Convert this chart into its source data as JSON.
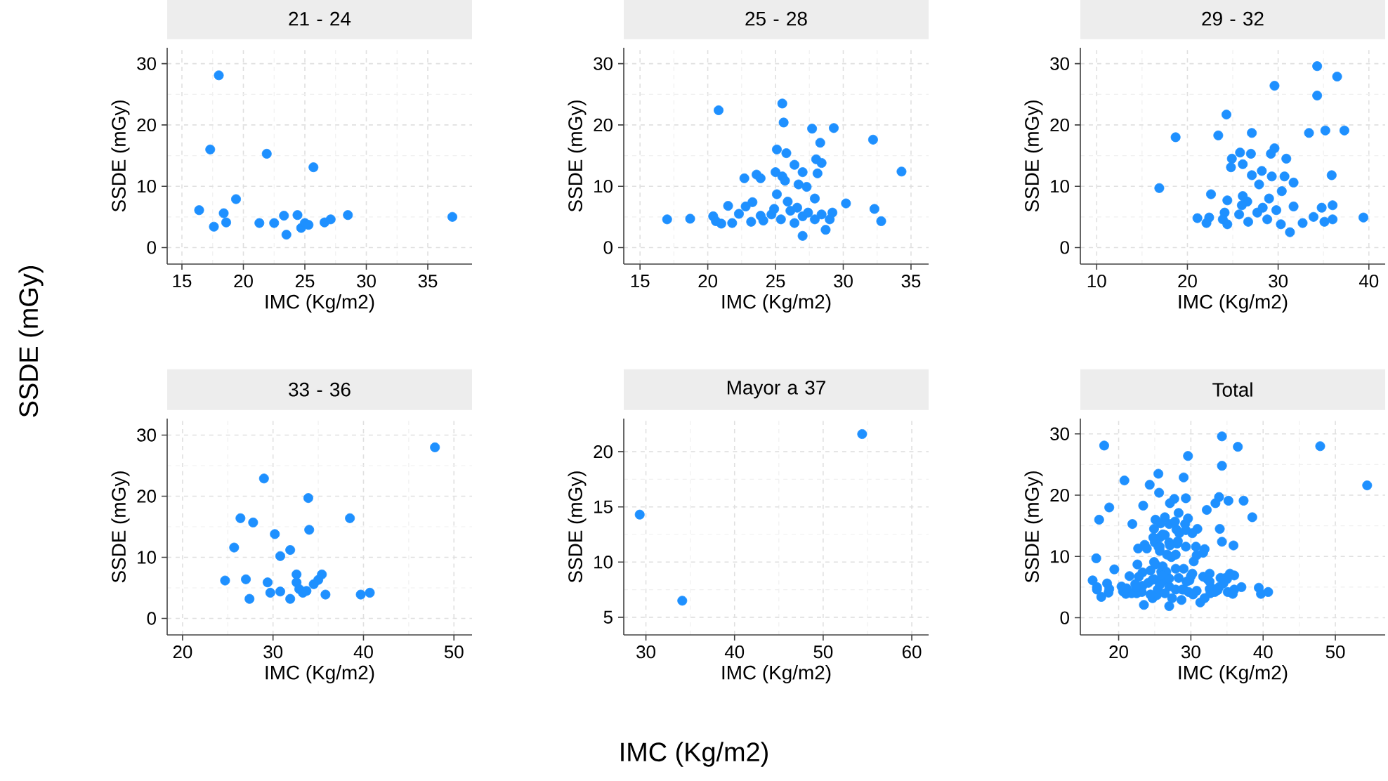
{
  "chart_data": [
    {
      "type": "scatter",
      "title": "21 - 24",
      "xlabel": "IMC (Kg/m2)",
      "ylabel": "SSDE (mGy)",
      "color": "#1e90ff",
      "grid": true,
      "xlim": [
        13.8,
        38.6
      ],
      "ylim": [
        -2.7,
        32.6
      ],
      "xticks": [
        15,
        20,
        25,
        30,
        35
      ],
      "yticks": [
        0,
        10,
        20,
        30
      ],
      "x": [
        18.0,
        17.3,
        21.9,
        25.7,
        19.4,
        16.4,
        18.4,
        18.6,
        17.6,
        21.3,
        22.5,
        23.3,
        23.5,
        24.4,
        24.7,
        25.0,
        25.3,
        26.6,
        27.1,
        28.5,
        37.0
      ],
      "values": [
        28.1,
        16.0,
        15.3,
        13.1,
        7.9,
        6.1,
        5.6,
        4.1,
        3.4,
        4.0,
        4.0,
        5.2,
        2.1,
        5.3,
        3.2,
        4.0,
        3.7,
        4.1,
        4.6,
        5.3,
        5.0
      ]
    },
    {
      "type": "scatter",
      "title": "25 - 28",
      "xlabel": "IMC (Kg/m2)",
      "ylabel": "SSDE (mGy)",
      "color": "#1e90ff",
      "grid": true,
      "xlim": [
        13.8,
        36.3
      ],
      "ylim": [
        -2.7,
        32.6
      ],
      "xticks": [
        15,
        20,
        25,
        30,
        35
      ],
      "yticks": [
        0,
        10,
        20,
        30
      ],
      "x": [
        20.8,
        25.5,
        25.6,
        27.7,
        29.3,
        32.2,
        28.3,
        25.1,
        25.8,
        28.0,
        28.4,
        26.4,
        28.1,
        27.0,
        25.0,
        23.6,
        23.9,
        22.7,
        25.5,
        25.7,
        34.3,
        26.7,
        27.3,
        25.1,
        25.9,
        27.9,
        23.3,
        21.5,
        22.8,
        30.2,
        32.3,
        17.0,
        18.7,
        20.4,
        20.6,
        21.0,
        21.8,
        22.3,
        23.2,
        24.1,
        24.7,
        25.4,
        26.1,
        26.4,
        27.0,
        27.0,
        27.4,
        27.9,
        28.4,
        28.7,
        29.0,
        29.2,
        32.8,
        23.9,
        26.6,
        24.9
      ],
      "values": [
        22.4,
        23.5,
        20.4,
        19.4,
        19.5,
        17.6,
        17.1,
        16.0,
        15.4,
        14.4,
        13.8,
        13.5,
        12.1,
        12.3,
        12.3,
        11.9,
        11.3,
        11.3,
        11.6,
        10.9,
        12.4,
        10.3,
        9.9,
        8.7,
        7.5,
        8.0,
        7.4,
        6.8,
        6.7,
        7.2,
        6.3,
        4.6,
        4.7,
        5.1,
        4.3,
        3.9,
        4.0,
        5.5,
        4.2,
        4.4,
        5.4,
        4.6,
        6.0,
        4.0,
        5.1,
        1.9,
        5.7,
        4.6,
        5.4,
        2.9,
        4.6,
        5.7,
        4.3,
        5.2,
        6.5,
        6.3
      ]
    },
    {
      "type": "scatter",
      "title": "29 - 32",
      "xlabel": "IMC (Kg/m2)",
      "ylabel": "SSDE (mGy)",
      "color": "#1e90ff",
      "grid": true,
      "xlim": [
        8.2,
        41.8
      ],
      "ylim": [
        -2.7,
        32.6
      ],
      "xticks": [
        10,
        20,
        30,
        40
      ],
      "yticks": [
        0,
        10,
        20,
        30
      ],
      "x": [
        34.3,
        36.5,
        29.6,
        34.3,
        24.3,
        27.1,
        23.4,
        18.7,
        33.4,
        35.2,
        37.3,
        29.6,
        29.2,
        25.8,
        27.0,
        24.9,
        30.9,
        24.8,
        26.1,
        28.2,
        27.1,
        29.3,
        30.7,
        35.9,
        16.9,
        22.6,
        31.7,
        30.4,
        26.1,
        27.9,
        29.0,
        24.4,
        26.6,
        21.1,
        22.4,
        22.1,
        24.1,
        24.4,
        25.7,
        26.7,
        27.7,
        28.8,
        29.8,
        30.3,
        31.3,
        31.7,
        32.7,
        33.9,
        34.8,
        35.1,
        36.0,
        36.0,
        39.4,
        26.0,
        28.3,
        23.9
      ],
      "values": [
        29.6,
        27.9,
        26.4,
        24.8,
        21.7,
        18.7,
        18.3,
        18.0,
        18.7,
        19.1,
        19.1,
        16.2,
        15.3,
        15.5,
        15.3,
        14.5,
        14.5,
        13.1,
        13.6,
        12.5,
        11.8,
        11.6,
        11.6,
        11.8,
        9.7,
        8.7,
        10.6,
        9.2,
        8.4,
        10.3,
        8.0,
        7.7,
        7.5,
        4.8,
        4.9,
        4.0,
        5.7,
        3.8,
        5.4,
        4.2,
        5.7,
        4.6,
        6.1,
        3.8,
        2.5,
        6.7,
        4.0,
        5.0,
        6.5,
        4.2,
        6.9,
        4.6,
        4.9,
        6.9,
        6.5,
        4.6
      ]
    },
    {
      "type": "scatter",
      "title": "33 - 36",
      "xlabel": "IMC (Kg/m2)",
      "ylabel": "SSDE (mGy)",
      "color": "#1e90ff",
      "grid": true,
      "xlim": [
        18.3,
        52.0
      ],
      "ylim": [
        -2.7,
        32.7
      ],
      "xticks": [
        20,
        30,
        40,
        50
      ],
      "yticks": [
        0,
        10,
        20,
        30
      ],
      "x": [
        47.9,
        29.0,
        33.9,
        26.4,
        27.8,
        38.5,
        34.0,
        30.2,
        25.7,
        31.9,
        30.8,
        24.7,
        27.0,
        29.4,
        27.4,
        29.7,
        30.8,
        31.9,
        32.6,
        32.6,
        32.9,
        33.3,
        33.7,
        34.5,
        35.0,
        35.4,
        35.8,
        39.7,
        40.7
      ],
      "values": [
        28.0,
        22.9,
        19.7,
        16.4,
        15.7,
        16.4,
        14.5,
        13.8,
        11.6,
        11.2,
        10.2,
        6.2,
        6.4,
        5.9,
        3.2,
        4.2,
        4.4,
        3.2,
        7.2,
        5.9,
        4.8,
        4.2,
        4.5,
        5.6,
        6.3,
        7.2,
        3.9,
        3.9,
        4.2
      ]
    },
    {
      "type": "scatter",
      "title": "Mayor a 37",
      "xlabel": "IMC (Kg/m2)",
      "ylabel": "SSDE (mGy)",
      "color": "#1e90ff",
      "grid": true,
      "xlim": [
        27.5,
        61.9
      ],
      "ylim": [
        3.4,
        23.0
      ],
      "xticks": [
        30,
        40,
        50,
        60
      ],
      "yticks": [
        5,
        10,
        15,
        20
      ],
      "x": [
        29.3,
        34.1,
        54.4
      ],
      "values": [
        14.3,
        6.5,
        21.6
      ]
    },
    {
      "type": "scatter",
      "title": "Total",
      "xlabel": "IMC (Kg/m2)",
      "ylabel": "SSDE (mGy)",
      "color": "#1e90ff",
      "grid": true,
      "xlim": [
        14.7,
        56.9
      ],
      "ylim": [
        -2.8,
        32.5
      ],
      "xticks": [
        20,
        30,
        40,
        50
      ],
      "yticks": [
        0,
        10,
        20,
        30
      ],
      "x": [
        18.0,
        17.3,
        21.9,
        25.7,
        19.4,
        16.4,
        18.4,
        18.6,
        17.6,
        22.5,
        23.3,
        23.5,
        24.7,
        25.3,
        37.0,
        20.8,
        25.5,
        25.6,
        27.7,
        29.3,
        32.2,
        28.3,
        25.1,
        25.8,
        28.0,
        28.4,
        26.4,
        28.1,
        27.0,
        25.0,
        23.6,
        23.9,
        22.7,
        25.5,
        25.7,
        34.3,
        26.7,
        27.3,
        24.9,
        25.1,
        25.9,
        27.9,
        23.3,
        21.5,
        22.8,
        30.0,
        30.2,
        32.3,
        17.0,
        17.0,
        18.7,
        20.4,
        20.6,
        21.0,
        21.8,
        22.3,
        23.2,
        25.4,
        26.1,
        26.4,
        27.0,
        27.0,
        27.9,
        28.7,
        29.0,
        32.6,
        24.9,
        34.3,
        36.5,
        29.6,
        34.3,
        24.3,
        27.1,
        23.4,
        18.7,
        33.4,
        35.2,
        37.3,
        29.6,
        29.2,
        27.0,
        24.9,
        30.9,
        24.8,
        26.1,
        28.2,
        27.1,
        29.3,
        30.7,
        35.9,
        16.9,
        22.6,
        31.7,
        30.4,
        26.1,
        27.9,
        29.0,
        24.4,
        26.6,
        21.1,
        22.4,
        24.1,
        24.4,
        25.7,
        28.8,
        29.8,
        30.3,
        31.3,
        31.7,
        32.7,
        33.9,
        34.8,
        35.1,
        36.0,
        36.0,
        39.4,
        26.0,
        28.3,
        47.9,
        29.0,
        33.9,
        26.4,
        27.8,
        38.5,
        34.0,
        30.2,
        25.7,
        31.9,
        30.8,
        24.7,
        27.0,
        29.4,
        27.4,
        29.7,
        30.8,
        31.9,
        32.6,
        32.6,
        32.9,
        33.3,
        33.7,
        34.5,
        35.0,
        35.4,
        35.8,
        39.7,
        40.7,
        29.3,
        34.1,
        54.4
      ],
      "values": [
        28.1,
        16.0,
        15.3,
        13.1,
        7.9,
        6.1,
        5.6,
        4.1,
        3.4,
        4.0,
        5.2,
        2.1,
        3.2,
        3.7,
        5.0,
        22.4,
        23.5,
        20.4,
        19.4,
        19.5,
        17.6,
        17.1,
        16.0,
        15.4,
        14.4,
        13.8,
        13.5,
        12.1,
        12.3,
        12.3,
        11.9,
        11.3,
        11.3,
        11.6,
        10.9,
        12.4,
        10.3,
        9.9,
        9.1,
        8.7,
        7.5,
        8.0,
        7.4,
        6.8,
        6.7,
        6.8,
        7.2,
        6.3,
        5.0,
        4.6,
        4.7,
        5.1,
        4.3,
        3.9,
        4.0,
        5.5,
        4.2,
        4.6,
        6.0,
        4.0,
        5.1,
        1.9,
        4.6,
        2.9,
        4.6,
        4.7,
        6.3,
        29.6,
        27.9,
        26.4,
        24.8,
        21.7,
        18.7,
        18.3,
        18.0,
        18.7,
        19.1,
        19.1,
        16.2,
        15.3,
        15.3,
        14.5,
        14.5,
        13.1,
        13.6,
        12.5,
        11.8,
        11.6,
        11.6,
        11.8,
        9.7,
        8.7,
        10.6,
        9.2,
        8.4,
        10.3,
        8.0,
        7.7,
        7.5,
        4.8,
        4.9,
        5.7,
        3.8,
        5.4,
        4.6,
        6.1,
        3.8,
        2.5,
        6.7,
        4.0,
        5.0,
        6.5,
        4.2,
        6.9,
        4.6,
        4.9,
        6.9,
        6.5,
        28.0,
        22.9,
        19.7,
        16.4,
        15.7,
        16.4,
        14.5,
        13.8,
        11.6,
        11.2,
        10.2,
        6.2,
        6.4,
        5.9,
        3.2,
        4.2,
        4.4,
        3.2,
        7.2,
        5.9,
        4.8,
        4.2,
        4.5,
        5.6,
        6.3,
        7.2,
        3.9,
        3.9,
        4.2,
        14.3,
        6.5,
        21.6
      ]
    },
    {
      "type": "other",
      "xlabel": "IMC (Kg/m2)",
      "ylabel": "SSDE (mGy)"
    }
  ]
}
